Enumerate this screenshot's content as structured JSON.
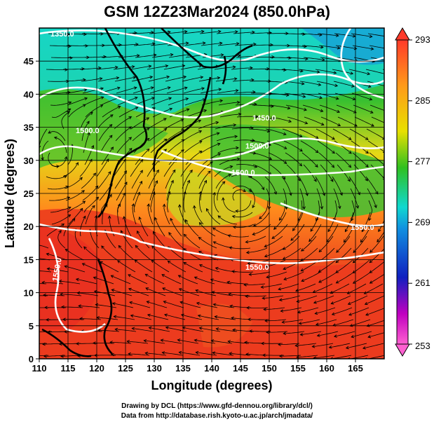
{
  "chart_data": {
    "type": "heatmap",
    "title": "GSM 12Z23Mar2024 (850.0hPa)",
    "xlabel": "Longitude (degrees)",
    "ylabel": "Latitude  (degrees)",
    "xlim": [
      110,
      170
    ],
    "ylim": [
      0,
      50
    ],
    "x_ticks": [
      110,
      115,
      120,
      125,
      130,
      135,
      140,
      145,
      150,
      155,
      160,
      165
    ],
    "y_ticks": [
      0,
      5,
      10,
      15,
      20,
      25,
      30,
      35,
      40,
      45
    ],
    "colorbar": {
      "min": 253,
      "max": 293,
      "labels": [
        293,
        285,
        277,
        269,
        261,
        253
      ],
      "colors": [
        "#ff3a2a",
        "#ff9a1a",
        "#e8e000",
        "#30c020",
        "#10d8d0",
        "#1090e0",
        "#1020c0",
        "#c000c0",
        "#ff60d0"
      ]
    },
    "contour_labels": [
      "1350.0",
      "1500.0",
      "1450.0",
      "1500.0",
      "1500.0",
      "1550.0",
      "1550.0",
      "1550.0"
    ],
    "colors": {
      "warm": "#e8321e",
      "orange": "#ff8a1c",
      "yellow": "#e6d816",
      "green": "#38c030",
      "cyan": "#18d6c6",
      "contour": "#ffffff",
      "streamline": "#000000",
      "coast": "#000000"
    }
  },
  "credits": {
    "line1": "Drawing by DCL (https://www.gfd-dennou.org/library/dcl/)",
    "line2": "Data from http://database.rish.kyoto-u.ac.jp/arch/jmadata/"
  }
}
